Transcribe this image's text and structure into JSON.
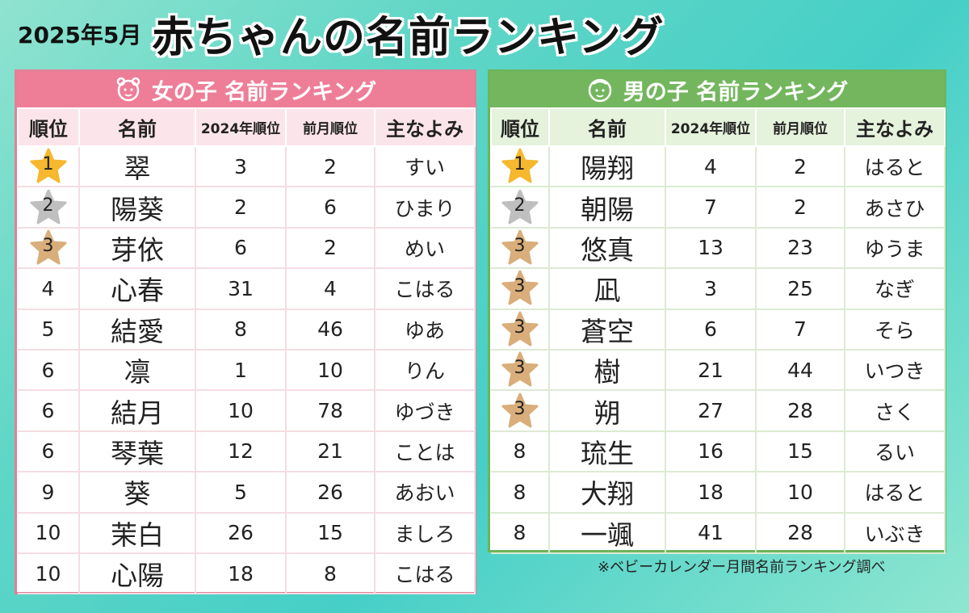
{
  "header": {
    "date": "2025年5月",
    "title": "赤ちゃんの名前ランキング"
  },
  "columns": {
    "rank": "順位",
    "name": "名前",
    "prev_year": "2024年順位",
    "prev_month": "前月順位",
    "yomi": "主なよみ"
  },
  "colors": {
    "girls_accent": "#ee7e98",
    "boys_accent": "#73b65e",
    "gold": "#f5b82e",
    "silver": "#bfbfbf",
    "bronze": "#d9ae7a"
  },
  "girls": {
    "title": "女の子 名前ランキング",
    "rows": [
      {
        "rank": "1",
        "name": "翠",
        "prev_year": "3",
        "prev_month": "2",
        "yomi": "すい",
        "medal": "gold"
      },
      {
        "rank": "2",
        "name": "陽葵",
        "prev_year": "2",
        "prev_month": "6",
        "yomi": "ひまり",
        "medal": "silver"
      },
      {
        "rank": "3",
        "name": "芽依",
        "prev_year": "6",
        "prev_month": "2",
        "yomi": "めい",
        "medal": "bronze"
      },
      {
        "rank": "4",
        "name": "心春",
        "prev_year": "31",
        "prev_month": "4",
        "yomi": "こはる",
        "medal": ""
      },
      {
        "rank": "5",
        "name": "結愛",
        "prev_year": "8",
        "prev_month": "46",
        "yomi": "ゆあ",
        "medal": ""
      },
      {
        "rank": "6",
        "name": "凛",
        "prev_year": "1",
        "prev_month": "10",
        "yomi": "りん",
        "medal": ""
      },
      {
        "rank": "6",
        "name": "結月",
        "prev_year": "10",
        "prev_month": "78",
        "yomi": "ゆづき",
        "medal": ""
      },
      {
        "rank": "6",
        "name": "琴葉",
        "prev_year": "12",
        "prev_month": "21",
        "yomi": "ことは",
        "medal": ""
      },
      {
        "rank": "9",
        "name": "葵",
        "prev_year": "5",
        "prev_month": "26",
        "yomi": "あおい",
        "medal": ""
      },
      {
        "rank": "10",
        "name": "茉白",
        "prev_year": "26",
        "prev_month": "15",
        "yomi": "ましろ",
        "medal": ""
      },
      {
        "rank": "10",
        "name": "心陽",
        "prev_year": "18",
        "prev_month": "8",
        "yomi": "こはる",
        "medal": ""
      }
    ]
  },
  "boys": {
    "title": "男の子 名前ランキング",
    "rows": [
      {
        "rank": "1",
        "name": "陽翔",
        "prev_year": "4",
        "prev_month": "2",
        "yomi": "はると",
        "medal": "gold"
      },
      {
        "rank": "2",
        "name": "朝陽",
        "prev_year": "7",
        "prev_month": "2",
        "yomi": "あさひ",
        "medal": "silver"
      },
      {
        "rank": "3",
        "name": "悠真",
        "prev_year": "13",
        "prev_month": "23",
        "yomi": "ゆうま",
        "medal": "bronze"
      },
      {
        "rank": "3",
        "name": "凪",
        "prev_year": "3",
        "prev_month": "25",
        "yomi": "なぎ",
        "medal": "bronze"
      },
      {
        "rank": "3",
        "name": "蒼空",
        "prev_year": "6",
        "prev_month": "7",
        "yomi": "そら",
        "medal": "bronze"
      },
      {
        "rank": "3",
        "name": "樹",
        "prev_year": "21",
        "prev_month": "44",
        "yomi": "いつき",
        "medal": "bronze"
      },
      {
        "rank": "3",
        "name": "朔",
        "prev_year": "27",
        "prev_month": "28",
        "yomi": "さく",
        "medal": "bronze"
      },
      {
        "rank": "8",
        "name": "琉生",
        "prev_year": "16",
        "prev_month": "15",
        "yomi": "るい",
        "medal": ""
      },
      {
        "rank": "8",
        "name": "大翔",
        "prev_year": "18",
        "prev_month": "10",
        "yomi": "はると",
        "medal": ""
      },
      {
        "rank": "8",
        "name": "一颯",
        "prev_year": "41",
        "prev_month": "28",
        "yomi": "いぶき",
        "medal": ""
      }
    ]
  },
  "footnote": "※ベビーカレンダー月間名前ランキング調べ"
}
